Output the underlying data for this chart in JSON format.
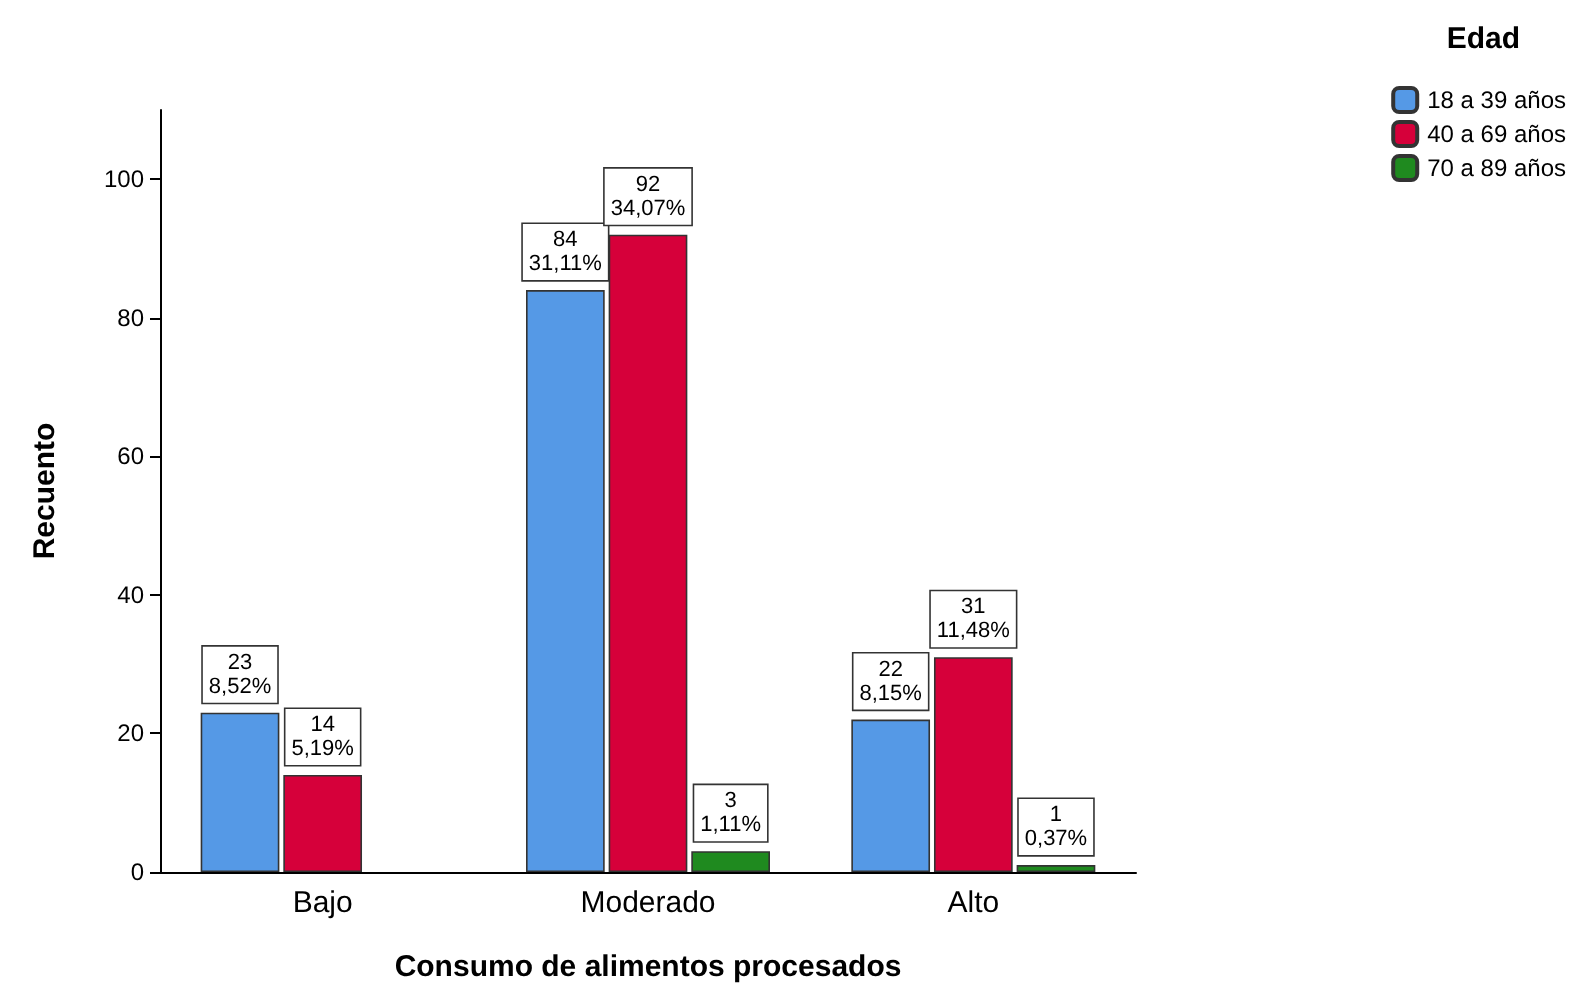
{
  "chart_data": {
    "type": "bar",
    "xlabel": "Consumo de alimentos procesados",
    "ylabel": "Recuento",
    "legend_title": "Edad",
    "categories": [
      "Bajo",
      "Moderado",
      "Alto"
    ],
    "series": [
      {
        "name": "18 a 39 años",
        "color": "#5599e6",
        "values": [
          23,
          84,
          22
        ],
        "value_labels": [
          "23\n8,52%",
          "84\n31,11%",
          "22\n8,15%"
        ]
      },
      {
        "name": "40 a 69 años",
        "color": "#d6003a",
        "values": [
          14,
          92,
          31
        ],
        "value_labels": [
          "14\n5,19%",
          "92\n34,07%",
          "31\n11,48%"
        ]
      },
      {
        "name": "70 a 89 años",
        "color": "#1f8a1f",
        "values": [
          null,
          3,
          1
        ],
        "value_labels": [
          null,
          "3\n1,11%",
          "1\n0,37%"
        ]
      }
    ],
    "ylim": [
      0,
      110
    ],
    "yticks": [
      0,
      20,
      40,
      60,
      80,
      100
    ],
    "grid": false,
    "legend": "top right"
  }
}
